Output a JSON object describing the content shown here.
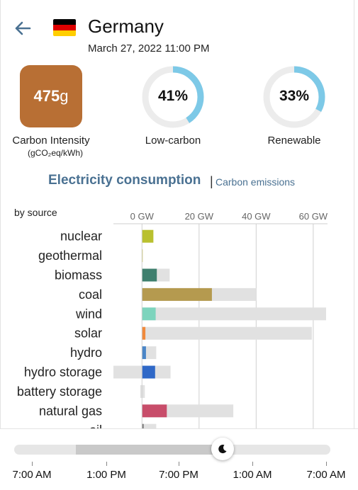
{
  "header": {
    "country": "Germany",
    "datetime": "March 27, 2022 11:00 PM",
    "flag_colors": [
      "#000000",
      "#dd0000",
      "#ffce00"
    ]
  },
  "stats": {
    "carbon_intensity": {
      "value": "475",
      "unit": "g",
      "label": "Carbon Intensity",
      "unit_label": "(gCO₂eq/kWh)",
      "color": "#b86f34"
    },
    "low_carbon": {
      "value": "41%",
      "fraction": 0.41,
      "label": "Low-carbon",
      "color": "#7dc9e7"
    },
    "renewable": {
      "value": "33%",
      "fraction": 0.33,
      "label": "Renewable",
      "color": "#7dc9e7"
    }
  },
  "tabs": {
    "active": "Electricity consumption",
    "separator": "|",
    "inactive": "Carbon emissions"
  },
  "chart_data": {
    "type": "bar",
    "subtitle": "by source",
    "x_unit": "GW",
    "xlim": [
      -10,
      65
    ],
    "ticks": [
      "0 GW",
      "20 GW",
      "40 GW",
      "60 GW"
    ],
    "tick_values": [
      0,
      20,
      40,
      60
    ],
    "categories": [
      "nuclear",
      "geothermal",
      "biomass",
      "coal",
      "wind",
      "solar",
      "hydro",
      "hydro storage",
      "battery storage",
      "natural gas",
      "oil"
    ],
    "production": [
      4.0,
      0.1,
      5.2,
      24.5,
      4.8,
      1.2,
      1.4,
      4.6,
      0.0,
      8.7,
      0.6
    ],
    "capacity": [
      4.0,
      0.1,
      9.7,
      40.0,
      64.5,
      59.5,
      5.0,
      10.0,
      1.0,
      32.0,
      5.0
    ],
    "negative_capacity": [
      0,
      0,
      0,
      0,
      0,
      0,
      0,
      -10.0,
      -0.6,
      0,
      0
    ],
    "colors": [
      "#b9c02f",
      "#c8c24a",
      "#3f7f6e",
      "#b59a4f",
      "#7dd4bd",
      "#f08a3c",
      "#4a86c7",
      "#2f68c7",
      "#b2b2b2",
      "#c84d6a",
      "#7a7a7a"
    ],
    "capacity_color": "#e1e1e1",
    "grid": true
  },
  "timeline": {
    "labels": [
      "7:00 AM",
      "1:00 PM",
      "7:00 PM",
      "1:00 AM",
      "7:00 AM"
    ],
    "position_fraction": 0.66,
    "night_start_fraction": 0.195,
    "night_end_fraction": 0.655
  }
}
